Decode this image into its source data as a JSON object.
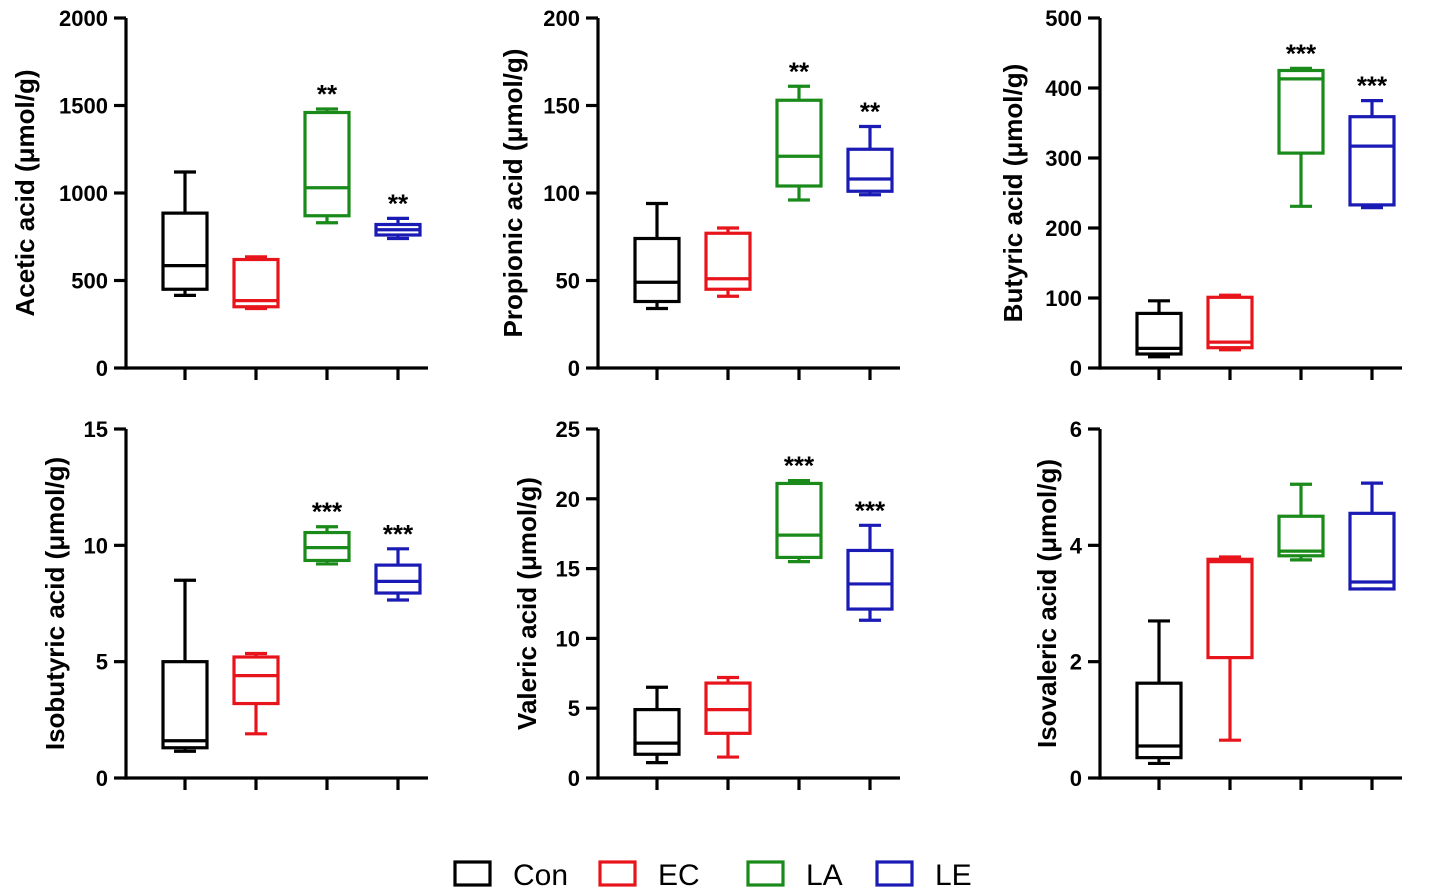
{
  "groups": [
    {
      "name": "Con",
      "color": "#000000"
    },
    {
      "name": "EC",
      "color": "#e8141b"
    },
    {
      "name": "LA",
      "color": "#1a8a1a"
    },
    {
      "name": "LE",
      "color": "#1a1ab4"
    }
  ],
  "chart_data": [
    {
      "type": "box",
      "ylabel": "Acetic acid (μmol/g)",
      "ylim": [
        0,
        2000
      ],
      "yticks": [
        0,
        500,
        1000,
        1500,
        2000
      ],
      "tick_labels": [
        "0",
        "500",
        "1000",
        "1500",
        "2000"
      ],
      "boxes": [
        {
          "group": "Con",
          "min": 415,
          "q1": 450,
          "median": 585,
          "q3": 885,
          "max": 1120,
          "sig": ""
        },
        {
          "group": "EC",
          "min": 340,
          "q1": 350,
          "median": 385,
          "q3": 620,
          "max": 635,
          "sig": ""
        },
        {
          "group": "LA",
          "min": 830,
          "q1": 870,
          "median": 1030,
          "q3": 1460,
          "max": 1480,
          "sig": "**"
        },
        {
          "group": "LE",
          "min": 740,
          "q1": 760,
          "median": 790,
          "q3": 820,
          "max": 855,
          "sig": "**"
        }
      ]
    },
    {
      "type": "box",
      "ylabel": "Propionic acid (μmol/g)",
      "ylim": [
        0,
        200
      ],
      "yticks": [
        0,
        50,
        100,
        150,
        200
      ],
      "tick_labels": [
        "0",
        "50",
        "100",
        "150",
        "200"
      ],
      "boxes": [
        {
          "group": "Con",
          "min": 34,
          "q1": 38,
          "median": 49,
          "q3": 74,
          "max": 94,
          "sig": ""
        },
        {
          "group": "EC",
          "min": 41,
          "q1": 45,
          "median": 51,
          "q3": 77,
          "max": 80,
          "sig": ""
        },
        {
          "group": "LA",
          "min": 96,
          "q1": 104,
          "median": 121,
          "q3": 153,
          "max": 161,
          "sig": "**"
        },
        {
          "group": "LE",
          "min": 99,
          "q1": 101,
          "median": 108,
          "q3": 125,
          "max": 138,
          "sig": "**"
        }
      ]
    },
    {
      "type": "box",
      "ylabel": "Butyric acid (μmol/g)",
      "ylim": [
        0,
        500
      ],
      "yticks": [
        0,
        100,
        200,
        300,
        400,
        500
      ],
      "tick_labels": [
        "0",
        "100",
        "200",
        "300",
        "400",
        "500"
      ],
      "boxes": [
        {
          "group": "Con",
          "min": 16,
          "q1": 20,
          "median": 28,
          "q3": 78,
          "max": 96,
          "sig": ""
        },
        {
          "group": "EC",
          "min": 26,
          "q1": 29,
          "median": 37,
          "q3": 101,
          "max": 104,
          "sig": ""
        },
        {
          "group": "LA",
          "min": 231,
          "q1": 307,
          "median": 413,
          "q3": 425,
          "max": 428,
          "sig": "***"
        },
        {
          "group": "LE",
          "min": 229,
          "q1": 233,
          "median": 317,
          "q3": 359,
          "max": 382,
          "sig": "***"
        }
      ]
    },
    {
      "type": "box",
      "ylabel": "Isobutyric acid  (μmol/g)",
      "ylim": [
        0,
        15
      ],
      "yticks": [
        0,
        5,
        10,
        15
      ],
      "tick_labels": [
        "0",
        "5",
        "10",
        "15"
      ],
      "boxes": [
        {
          "group": "Con",
          "min": 1.15,
          "q1": 1.3,
          "median": 1.6,
          "q3": 5.0,
          "max": 8.5,
          "sig": ""
        },
        {
          "group": "EC",
          "min": 1.9,
          "q1": 3.2,
          "median": 4.4,
          "q3": 5.2,
          "max": 5.35,
          "sig": ""
        },
        {
          "group": "LA",
          "min": 9.2,
          "q1": 9.35,
          "median": 9.9,
          "q3": 10.55,
          "max": 10.8,
          "sig": "***"
        },
        {
          "group": "LE",
          "min": 7.65,
          "q1": 7.95,
          "median": 8.45,
          "q3": 9.15,
          "max": 9.85,
          "sig": "***"
        }
      ]
    },
    {
      "type": "box",
      "ylabel": "Valeric acid (μmol/g)",
      "ylim": [
        0,
        25
      ],
      "yticks": [
        0,
        5,
        10,
        15,
        20,
        25
      ],
      "tick_labels": [
        "0",
        "5",
        "10",
        "15",
        "20",
        "25"
      ],
      "boxes": [
        {
          "group": "Con",
          "min": 1.1,
          "q1": 1.7,
          "median": 2.5,
          "q3": 4.9,
          "max": 6.5,
          "sig": ""
        },
        {
          "group": "EC",
          "min": 1.5,
          "q1": 3.2,
          "median": 4.9,
          "q3": 6.8,
          "max": 7.2,
          "sig": ""
        },
        {
          "group": "LA",
          "min": 15.5,
          "q1": 15.8,
          "median": 17.4,
          "q3": 21.1,
          "max": 21.3,
          "sig": "***"
        },
        {
          "group": "LE",
          "min": 11.3,
          "q1": 12.1,
          "median": 13.9,
          "q3": 16.3,
          "max": 18.1,
          "sig": "***"
        }
      ]
    },
    {
      "type": "box",
      "ylabel": "Isovaleric acid (μmol/g)",
      "ylim": [
        0,
        6
      ],
      "yticks": [
        0,
        2,
        4,
        6
      ],
      "tick_labels": [
        "0",
        "2",
        "4",
        "6"
      ],
      "boxes": [
        {
          "group": "Con",
          "min": 0.25,
          "q1": 0.35,
          "median": 0.55,
          "q3": 1.63,
          "max": 2.7,
          "sig": ""
        },
        {
          "group": "EC",
          "min": 0.65,
          "q1": 2.07,
          "median": 3.72,
          "q3": 3.76,
          "max": 3.8,
          "sig": ""
        },
        {
          "group": "LA",
          "min": 3.75,
          "q1": 3.82,
          "median": 3.9,
          "q3": 4.5,
          "max": 5.05,
          "sig": ""
        },
        {
          "group": "LE",
          "min": 3.25,
          "q1": 3.25,
          "median": 3.37,
          "q3": 4.55,
          "max": 5.07,
          "sig": ""
        }
      ]
    }
  ]
}
